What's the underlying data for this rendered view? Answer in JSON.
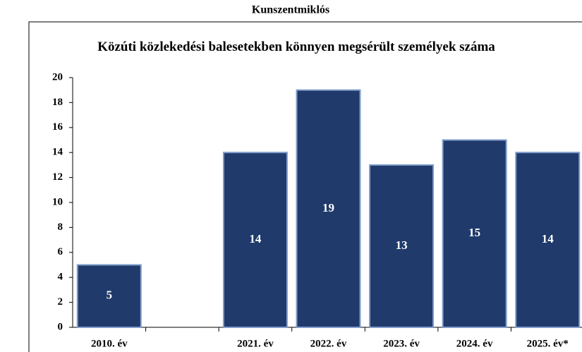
{
  "chart_data": {
    "type": "bar",
    "header": "Kunszentmiklós",
    "title": "Közúti közlekedési balesetekben könnyen megsérült személyek száma",
    "categories": [
      "2010. év",
      null,
      "2021. év",
      "2022. év",
      "2023. év",
      "2024. év",
      "2025. év*"
    ],
    "values": [
      5,
      null,
      14,
      19,
      13,
      15,
      14
    ],
    "color": "#1f3a6b",
    "ylim": [
      0,
      20
    ],
    "yticks": [
      0,
      2,
      4,
      6,
      8,
      10,
      12,
      14,
      16,
      18,
      20
    ],
    "grid": false
  }
}
